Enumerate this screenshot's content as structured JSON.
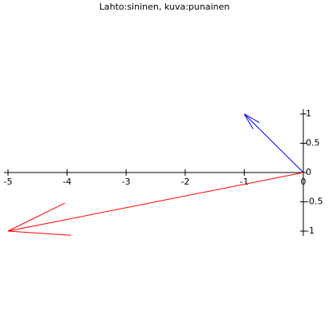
{
  "chart_data": {
    "type": "vector",
    "title": "Lahto:sininen, kuva:punainen",
    "series": [
      {
        "color": "#0000ff",
        "x": [
          0,
          -1
        ],
        "values": [
          0,
          1
        ]
      },
      {
        "color": "#ff0000",
        "x": [
          0,
          -5
        ],
        "values": [
          0,
          -1
        ]
      }
    ],
    "xlim": [
      -5,
      0
    ],
    "ylim": [
      -1,
      1
    ],
    "xticks": [
      -5,
      -4,
      -3,
      -2,
      -1,
      0
    ],
    "yticks": [
      1,
      0.5,
      0,
      -0.5,
      -1
    ]
  }
}
